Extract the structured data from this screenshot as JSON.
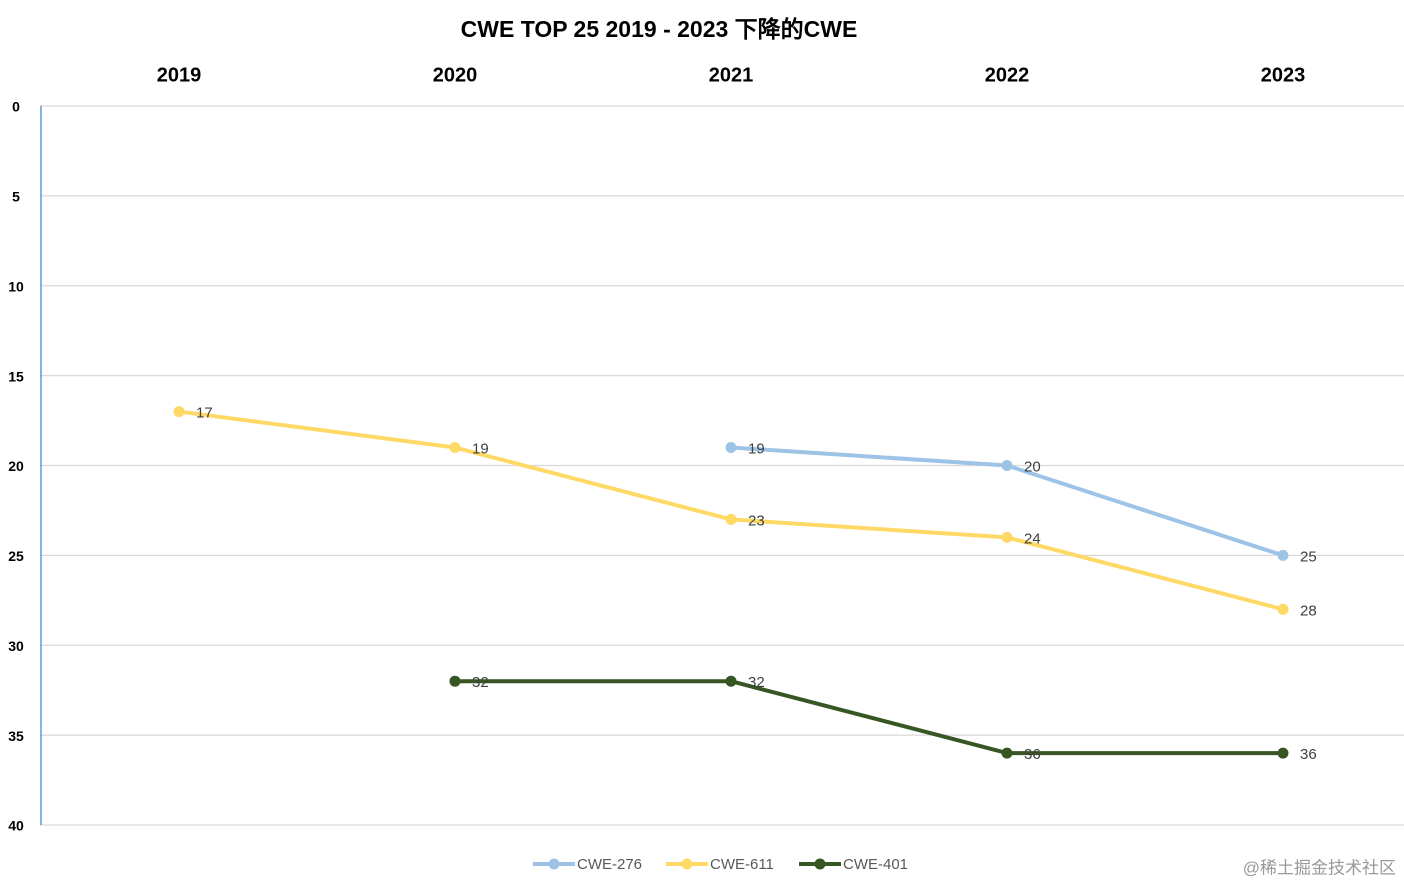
{
  "chart_data": {
    "type": "line",
    "title": "CWE TOP 25 2019 - 2023 下降的CWE",
    "categories": [
      "2019",
      "2020",
      "2021",
      "2022",
      "2023"
    ],
    "series": [
      {
        "name": "CWE-276",
        "color": "#9dc3e6",
        "values": [
          null,
          null,
          19,
          20,
          25
        ]
      },
      {
        "name": "CWE-611",
        "color": "#ffd966",
        "values": [
          17,
          19,
          23,
          24,
          28
        ]
      },
      {
        "name": "CWE-401",
        "color": "#375623",
        "values": [
          null,
          32,
          32,
          36,
          36
        ]
      }
    ],
    "ylim": [
      0,
      40
    ],
    "yticks": [
      0,
      5,
      10,
      15,
      20,
      25,
      30,
      35,
      40
    ],
    "y_reversed": true,
    "grid": true,
    "legend": "bottom",
    "watermark": "@稀土掘金技术社区"
  }
}
